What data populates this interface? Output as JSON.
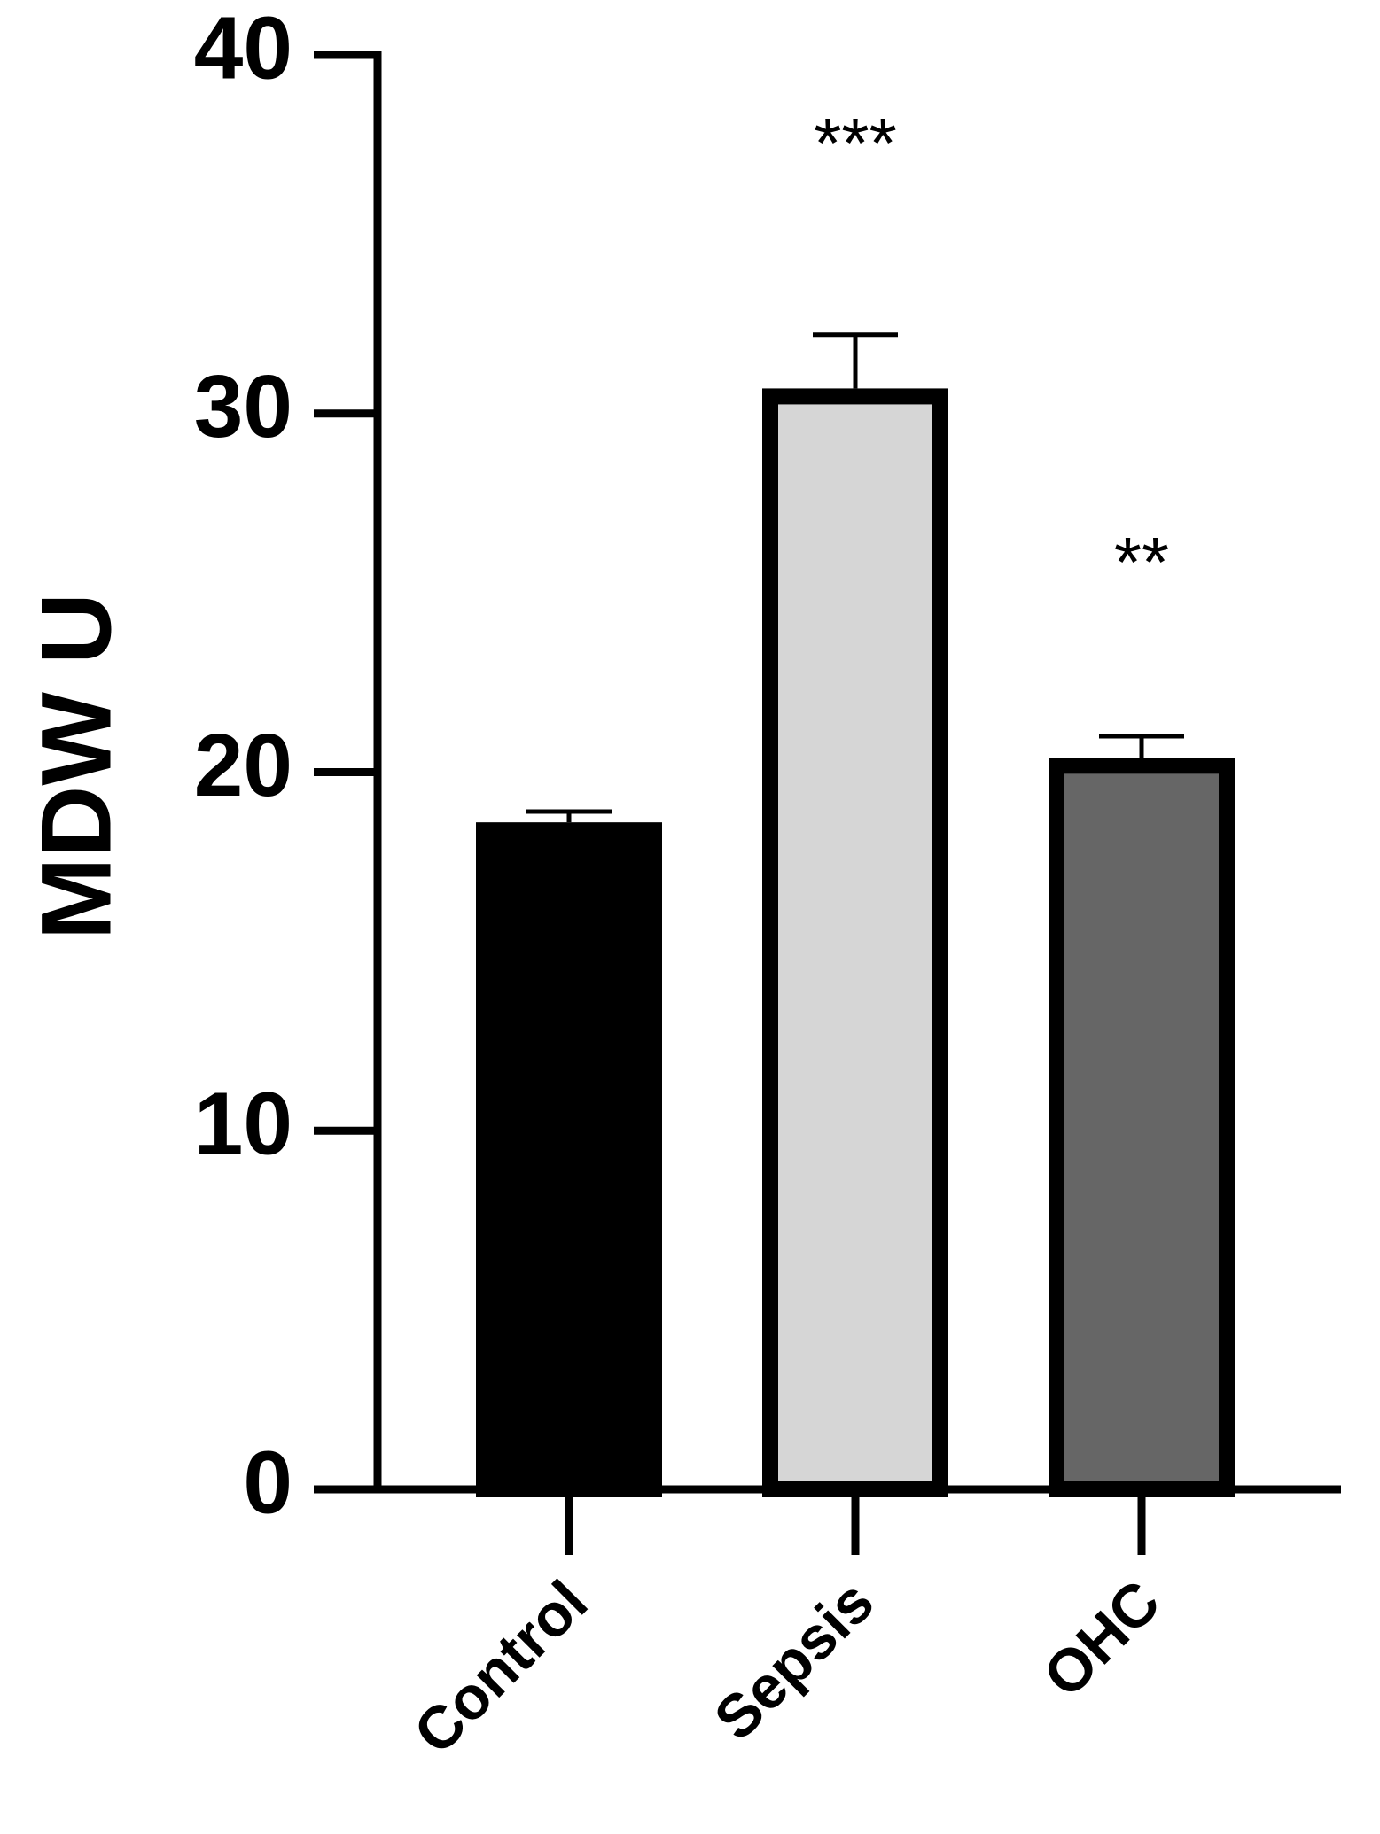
{
  "chart_data": {
    "type": "bar",
    "y_label": "MDW U",
    "categories": [
      "Control",
      "Sepsis",
      "OHC"
    ],
    "values": [
      18.6,
      30.7,
      20.4
    ],
    "errors": [
      0.3,
      1.5,
      0.6
    ],
    "colors": [
      "#000000",
      "#d6d6d6",
      "#666666"
    ],
    "significance": [
      null,
      "***",
      "**"
    ],
    "ylim": [
      0,
      40
    ],
    "yticks": [
      0,
      10,
      20,
      30,
      40
    ],
    "grid": false
  }
}
